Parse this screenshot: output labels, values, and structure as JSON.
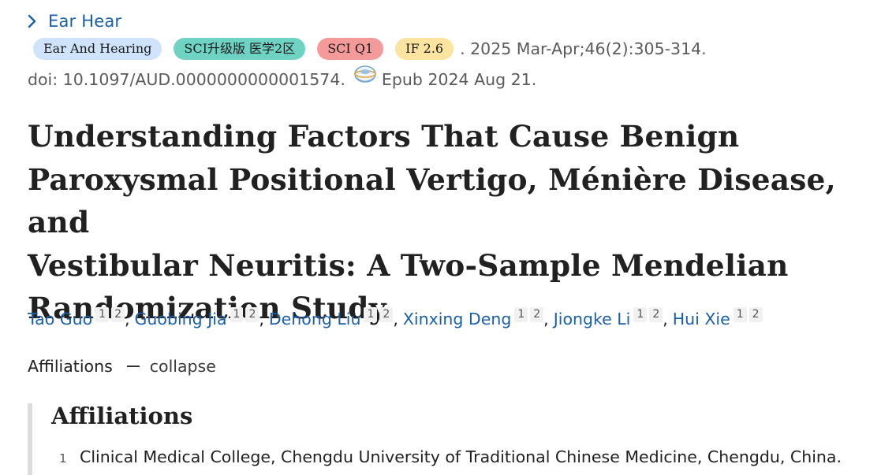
{
  "journal": {
    "link_label": "Ear Hear",
    "chevron_icon": "chevron-right-icon"
  },
  "badges": {
    "journal": "Ear And Hearing",
    "sci_tier": "SCI升级版 医学2区",
    "sci_quartile": "SCI Q1",
    "impact_factor": "IF 2.6"
  },
  "citation": {
    "details": ". 2025 Mar-Apr;46(2):305-314.",
    "doi": "doi: 10.1097/AUD.0000000000001574.",
    "epub_icon": "epub-globe-icon",
    "epub": "Epub 2024 Aug 21."
  },
  "title": {
    "line1": "Understanding Factors That Cause Benign",
    "line2": "Paroxysmal Positional Vertigo, Ménière Disease, and",
    "line3": "Vestibular Neuritis: A Two-Sample Mendelian",
    "line4": "Randomization Study"
  },
  "authors": [
    {
      "name": "Tao Guo",
      "aff1": "1",
      "aff2": "2"
    },
    {
      "name": "Guobing Jia",
      "aff1": "1",
      "aff2": "2"
    },
    {
      "name": "Dehong Liu",
      "aff1": "1",
      "aff2": "2"
    },
    {
      "name": "Xinxing Deng",
      "aff1": "1",
      "aff2": "2"
    },
    {
      "name": "Jiongke Li",
      "aff1": "1",
      "aff2": "2"
    },
    {
      "name": "Hui Xie",
      "aff1": "1",
      "aff2": "2"
    }
  ],
  "affiliations_toggle": {
    "label": "Affiliations",
    "action": "collapse"
  },
  "affiliations_panel": {
    "heading": "Affiliations",
    "items": [
      {
        "num": "1",
        "text": "Clinical Medical College, Chengdu University of Traditional Chinese Medicine, Chengdu, China."
      }
    ]
  },
  "colors": {
    "link": "#1b5fa8",
    "badge_journal": "#cfe3fa",
    "badge_sci": "#6fd3c3",
    "badge_q1": "#f59a9a",
    "badge_if": "#fbe4a0"
  }
}
